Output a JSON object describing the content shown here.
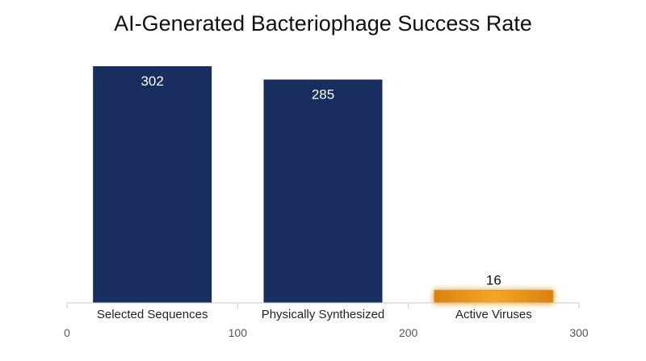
{
  "chart_data": {
    "type": "bar",
    "title": "AI-Generated Bacteriophage Success Rate",
    "categories": [
      "Selected Sequences",
      "Physically Synthesized",
      "Active Viruses"
    ],
    "values": [
      302,
      285,
      16
    ],
    "data_labels": [
      "302",
      "285",
      "16"
    ],
    "xlabel": "",
    "ylabel": "",
    "ylim": [
      0,
      302
    ],
    "x_ticks": [
      0,
      100,
      200,
      300
    ],
    "grid": false,
    "legend": "none",
    "colors": {
      "primary_bar": "#172e5e",
      "highlight_bar": "#e8951c",
      "primary_label": "#ffffff",
      "highlight_label": "#111111",
      "axis": "#c8c8c8"
    },
    "highlight_index": 2
  }
}
